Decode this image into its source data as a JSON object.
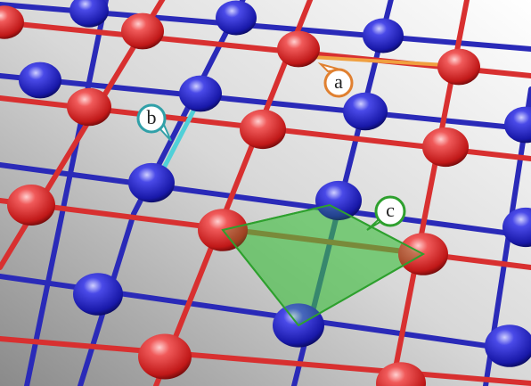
{
  "callouts": [
    {
      "label": "a"
    },
    {
      "label": "b"
    },
    {
      "label": "c"
    }
  ]
}
